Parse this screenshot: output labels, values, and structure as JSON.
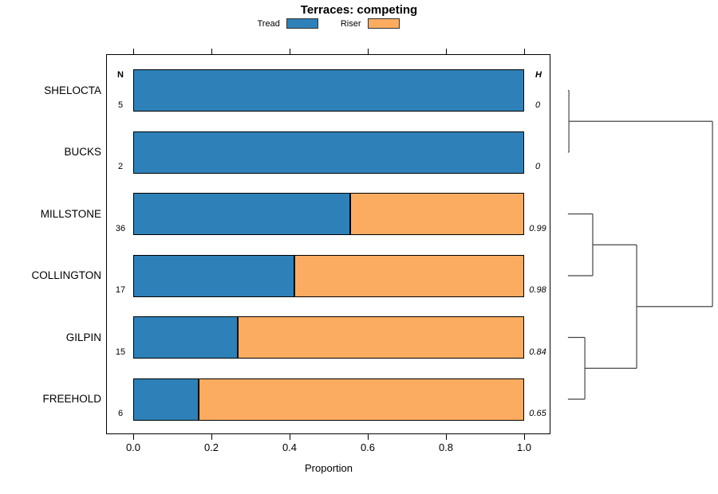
{
  "chart_data": {
    "type": "bar",
    "orientation": "horizontal",
    "stacked": true,
    "title": "Terraces: competing",
    "xlabel": "Proportion",
    "xlim": [
      0.0,
      1.0
    ],
    "x_ticks": [
      "0.0",
      "0.2",
      "0.4",
      "0.6",
      "0.8",
      "1.0"
    ],
    "x_tick_values": [
      0.0,
      0.2,
      0.4,
      0.6,
      0.8,
      1.0
    ],
    "legend_position": "top",
    "n_header": "N",
    "h_header": "H",
    "categories": [
      "SHELOCTA",
      "BUCKS",
      "MILLSTONE",
      "COLLINGTON",
      "GILPIN",
      "FREEHOLD"
    ],
    "n_values": [
      "5",
      "2",
      "36",
      "17",
      "15",
      "6"
    ],
    "h_values": [
      "0",
      "0",
      "0.99",
      "0.98",
      "0.84",
      "0.65"
    ],
    "series": [
      {
        "name": "Tread",
        "color": "#2E81B8",
        "values": [
          1.0,
          1.0,
          0.556,
          0.412,
          0.267,
          0.167
        ]
      },
      {
        "name": "Riser",
        "color": "#FBAC60",
        "values": [
          0.0,
          0.0,
          0.444,
          0.588,
          0.733,
          0.833
        ]
      }
    ],
    "bar_border_color": "#000000",
    "dendrogram": {
      "line_color": "#444444",
      "leaf_height": 0.05,
      "nodes": [
        {
          "id": "c1",
          "children": [
            "SHELOCTA",
            "BUCKS"
          ],
          "height": 0.056
        },
        {
          "id": "c2",
          "children": [
            "MILLSTONE",
            "COLLINGTON"
          ],
          "height": 0.207
        },
        {
          "id": "c3",
          "children": [
            "GILPIN",
            "FREEHOLD"
          ],
          "height": 0.157
        },
        {
          "id": "c4",
          "children": [
            "c2",
            "c3"
          ],
          "height": 0.485
        },
        {
          "id": "root",
          "children": [
            "c1",
            "c4"
          ],
          "height": 0.965
        }
      ]
    }
  }
}
